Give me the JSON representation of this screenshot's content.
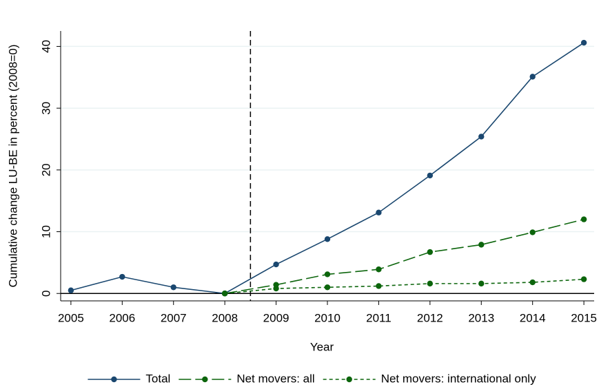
{
  "chart_data": {
    "type": "line",
    "x_label": "Year",
    "y_label": "Cumulative change LU-BE in percent (2008=0)",
    "x": [
      2005,
      2006,
      2007,
      2008,
      2009,
      2010,
      2011,
      2012,
      2013,
      2014,
      2015
    ],
    "series": [
      {
        "name": "Total",
        "color": "#1a476f",
        "dash": "none",
        "values": [
          0.5,
          2.7,
          1.0,
          0,
          4.7,
          8.8,
          13.1,
          19.1,
          25.4,
          35.1,
          40.6
        ]
      },
      {
        "name": "Net movers: all",
        "color": "#0c650c",
        "dash": "18 6",
        "values": [
          null,
          null,
          null,
          0,
          1.4,
          3.1,
          3.9,
          6.7,
          7.9,
          9.9,
          12.0
        ]
      },
      {
        "name": "Net movers: international only",
        "color": "#0c650c",
        "dash": "5 4",
        "values": [
          null,
          null,
          null,
          0,
          0.8,
          1.0,
          1.2,
          1.6,
          1.6,
          1.8,
          2.3
        ]
      }
    ],
    "xlim": [
      2004.8,
      2015.2
    ],
    "xticks": [
      2005,
      2006,
      2007,
      2008,
      2009,
      2010,
      2011,
      2012,
      2013,
      2014,
      2015
    ],
    "ylim": [
      -1.2,
      42.5
    ],
    "yticks": [
      0,
      10,
      20,
      30,
      40
    ],
    "vline": 2008.5,
    "hline": 0,
    "grid": true,
    "legend": "bottom"
  }
}
